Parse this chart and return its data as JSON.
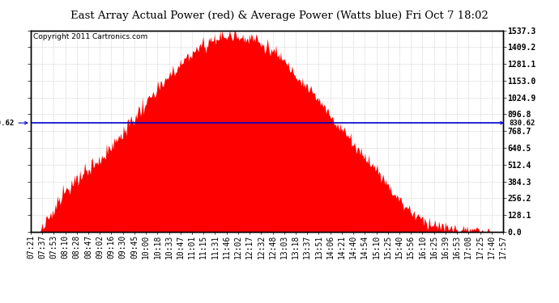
{
  "title": "East Array Actual Power (red) & Average Power (Watts blue) Fri Oct 7 18:02",
  "copyright": "Copyright 2011 Cartronics.com",
  "average_power": 830.62,
  "y_max": 1537.3,
  "y_min": 0.0,
  "y_ticks": [
    0.0,
    128.1,
    256.2,
    384.3,
    512.4,
    640.5,
    768.7,
    896.8,
    1024.9,
    1153.0,
    1281.1,
    1409.2,
    1537.3
  ],
  "x_labels": [
    "07:21",
    "07:37",
    "07:53",
    "08:10",
    "08:28",
    "08:47",
    "09:02",
    "09:16",
    "09:30",
    "09:45",
    "10:00",
    "10:18",
    "10:33",
    "10:47",
    "11:01",
    "11:15",
    "11:31",
    "11:46",
    "12:02",
    "12:17",
    "12:32",
    "12:48",
    "13:03",
    "13:18",
    "13:37",
    "13:51",
    "14:06",
    "14:21",
    "14:40",
    "14:54",
    "15:10",
    "15:25",
    "15:40",
    "15:56",
    "16:10",
    "16:25",
    "16:39",
    "16:53",
    "17:08",
    "17:25",
    "17:40",
    "17:57"
  ],
  "fill_color": "#FF0000",
  "line_color": "#0000CD",
  "background_color": "#FFFFFF",
  "grid_color": "#CCCCCC",
  "title_fontsize": 9.5,
  "copyright_fontsize": 6.5,
  "tick_fontsize": 7,
  "avg_label_fontsize": 6.5
}
